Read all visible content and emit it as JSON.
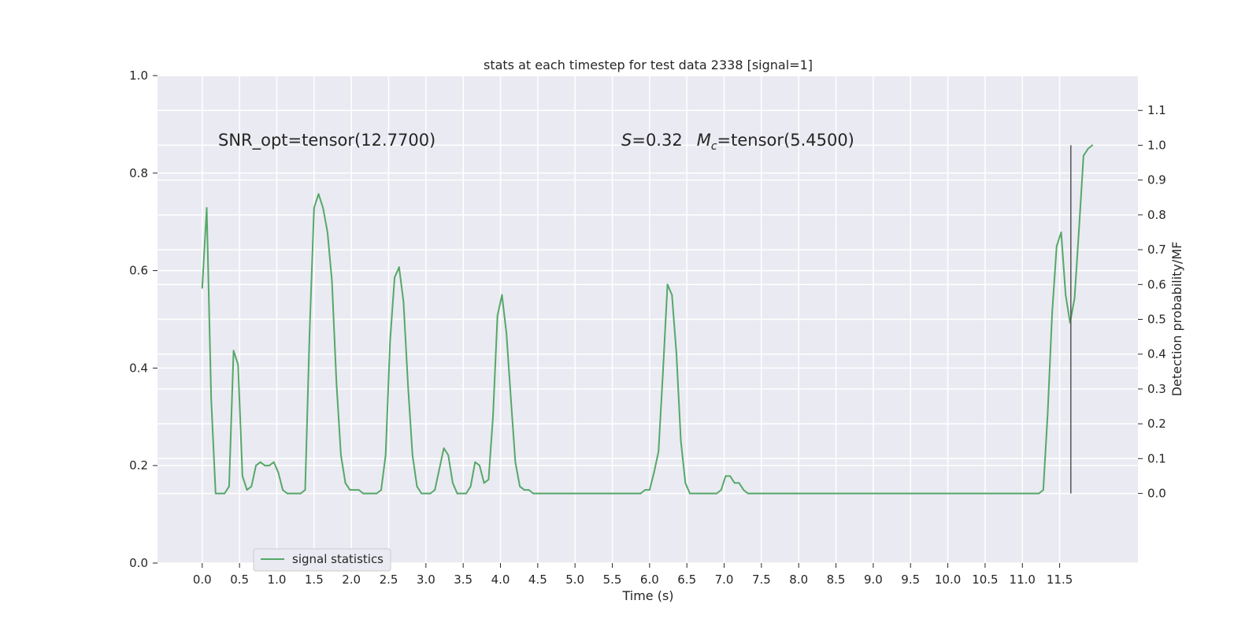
{
  "chart_data": {
    "type": "line",
    "title": "stats at each timestep for test data 2338 [signal=1]",
    "xlabel": "Time (s)",
    "ylabel": "",
    "ylabel_right": "Detection probability/MF",
    "xlim": [
      -0.6,
      12.55
    ],
    "ylim": [
      0.0,
      1.0
    ],
    "ylim_right": [
      -0.2,
      1.2
    ],
    "x_ticks": [
      "0.0",
      "0.5",
      "1.0",
      "1.5",
      "2.0",
      "2.5",
      "3.0",
      "3.5",
      "4.0",
      "4.5",
      "5.0",
      "5.5",
      "6.0",
      "6.5",
      "7.0",
      "7.5",
      "8.0",
      "8.5",
      "9.0",
      "9.5",
      "10.0",
      "10.5",
      "11.0",
      "11.5"
    ],
    "y_ticks": [
      "0.0",
      "0.2",
      "0.4",
      "0.6",
      "0.8",
      "1.0"
    ],
    "y_ticks_right": [
      "0.0",
      "0.1",
      "0.2",
      "0.3",
      "0.4",
      "0.5",
      "0.6",
      "0.7",
      "0.8",
      "0.9",
      "1.0",
      "1.1"
    ],
    "grid": true,
    "legend_position": "lower-left",
    "series": [
      {
        "name": "signal statistics",
        "color": "#55a868",
        "axis": "right",
        "x": [
          0.0,
          0.06,
          0.12,
          0.18,
          0.24,
          0.3,
          0.36,
          0.42,
          0.48,
          0.54,
          0.6,
          0.66,
          0.72,
          0.78,
          0.84,
          0.9,
          0.96,
          1.02,
          1.08,
          1.14,
          1.2,
          1.26,
          1.32,
          1.38,
          1.44,
          1.5,
          1.56,
          1.62,
          1.68,
          1.74,
          1.8,
          1.86,
          1.92,
          1.98,
          2.04,
          2.1,
          2.16,
          2.22,
          2.28,
          2.34,
          2.4,
          2.46,
          2.52,
          2.58,
          2.64,
          2.7,
          2.76,
          2.82,
          2.88,
          2.94,
          3.0,
          3.06,
          3.12,
          3.18,
          3.24,
          3.3,
          3.36,
          3.42,
          3.48,
          3.54,
          3.6,
          3.66,
          3.72,
          3.78,
          3.84,
          3.9,
          3.96,
          4.02,
          4.08,
          4.14,
          4.2,
          4.26,
          4.32,
          4.38,
          4.44,
          4.5,
          4.56,
          4.62,
          4.68,
          4.74,
          4.8,
          4.86,
          4.92,
          4.98,
          5.04,
          5.1,
          5.16,
          5.22,
          5.28,
          5.34,
          5.4,
          5.46,
          5.52,
          5.58,
          5.64,
          5.7,
          5.76,
          5.82,
          5.88,
          5.94,
          6.0,
          6.06,
          6.12,
          6.18,
          6.24,
          6.3,
          6.36,
          6.42,
          6.48,
          6.54,
          6.6,
          6.66,
          6.72,
          6.78,
          6.84,
          6.9,
          6.96,
          7.02,
          7.08,
          7.14,
          7.2,
          7.26,
          7.32,
          7.38,
          7.44,
          7.5,
          7.56,
          7.62,
          7.68,
          7.74,
          7.8,
          7.86,
          7.92,
          7.98,
          8.04,
          8.1,
          8.16,
          8.22,
          8.28,
          8.34,
          8.4,
          8.46,
          8.52,
          8.58,
          8.64,
          8.7,
          8.76,
          8.82,
          8.88,
          8.94,
          9.0,
          9.06,
          9.12,
          9.18,
          9.24,
          9.3,
          9.36,
          9.42,
          9.48,
          9.54,
          9.6,
          9.66,
          9.72,
          9.78,
          9.84,
          9.9,
          9.96,
          10.02,
          10.08,
          10.14,
          10.2,
          10.26,
          10.32,
          10.38,
          10.44,
          10.5,
          10.56,
          10.62,
          10.68,
          10.74,
          10.8,
          10.86,
          10.92,
          10.98,
          11.04,
          11.1,
          11.16,
          11.22,
          11.28,
          11.34,
          11.4,
          11.46,
          11.52,
          11.58,
          11.64,
          11.7,
          11.76,
          11.82,
          11.88,
          11.94
        ],
        "values": [
          0.59,
          0.82,
          0.27,
          0.0,
          0.0,
          0.0,
          0.02,
          0.41,
          0.37,
          0.05,
          0.01,
          0.02,
          0.08,
          0.09,
          0.08,
          0.08,
          0.09,
          0.06,
          0.01,
          0.0,
          0.0,
          0.0,
          0.0,
          0.01,
          0.46,
          0.82,
          0.86,
          0.82,
          0.75,
          0.61,
          0.32,
          0.11,
          0.03,
          0.01,
          0.01,
          0.01,
          0.0,
          0.0,
          0.0,
          0.0,
          0.01,
          0.11,
          0.44,
          0.62,
          0.65,
          0.55,
          0.31,
          0.11,
          0.02,
          0.0,
          0.0,
          0.0,
          0.01,
          0.07,
          0.13,
          0.11,
          0.03,
          0.0,
          0.0,
          0.0,
          0.02,
          0.09,
          0.08,
          0.03,
          0.04,
          0.22,
          0.51,
          0.57,
          0.46,
          0.27,
          0.09,
          0.02,
          0.01,
          0.01,
          0.0,
          0.0,
          0.0,
          0.0,
          0.0,
          0.0,
          0.0,
          0.0,
          0.0,
          0.0,
          0.0,
          0.0,
          0.0,
          0.0,
          0.0,
          0.0,
          0.0,
          0.0,
          0.0,
          0.0,
          0.0,
          0.0,
          0.0,
          0.0,
          0.0,
          0.01,
          0.01,
          0.06,
          0.12,
          0.35,
          0.6,
          0.57,
          0.4,
          0.15,
          0.03,
          0.0,
          0.0,
          0.0,
          0.0,
          0.0,
          0.0,
          0.0,
          0.01,
          0.05,
          0.05,
          0.03,
          0.03,
          0.01,
          0.0,
          0.0,
          0.0,
          0.0,
          0.0,
          0.0,
          0.0,
          0.0,
          0.0,
          0.0,
          0.0,
          0.0,
          0.0,
          0.0,
          0.0,
          0.0,
          0.0,
          0.0,
          0.0,
          0.0,
          0.0,
          0.0,
          0.0,
          0.0,
          0.0,
          0.0,
          0.0,
          0.0,
          0.0,
          0.0,
          0.0,
          0.0,
          0.0,
          0.0,
          0.0,
          0.0,
          0.0,
          0.0,
          0.0,
          0.0,
          0.0,
          0.0,
          0.0,
          0.0,
          0.0,
          0.0,
          0.0,
          0.0,
          0.0,
          0.0,
          0.0,
          0.0,
          0.0,
          0.0,
          0.0,
          0.0,
          0.0,
          0.0,
          0.0,
          0.0,
          0.0,
          0.0,
          0.0,
          0.0,
          0.0,
          0.0,
          0.01,
          0.23,
          0.52,
          0.71,
          0.75,
          0.57,
          0.49,
          0.56,
          0.76,
          0.97,
          0.99,
          1.0
        ]
      }
    ],
    "vertical_line": {
      "x": 11.65,
      "y_range_right": [
        0.0,
        1.0
      ],
      "color": "#555555"
    },
    "annotations": {
      "snr": "SNR_opt=tensor(12.7700)",
      "s_symbol": "S",
      "s_value": "=0.32",
      "mc_symbol": "M",
      "mc_sub": "c",
      "mc_value": "=tensor(5.4500)"
    }
  }
}
